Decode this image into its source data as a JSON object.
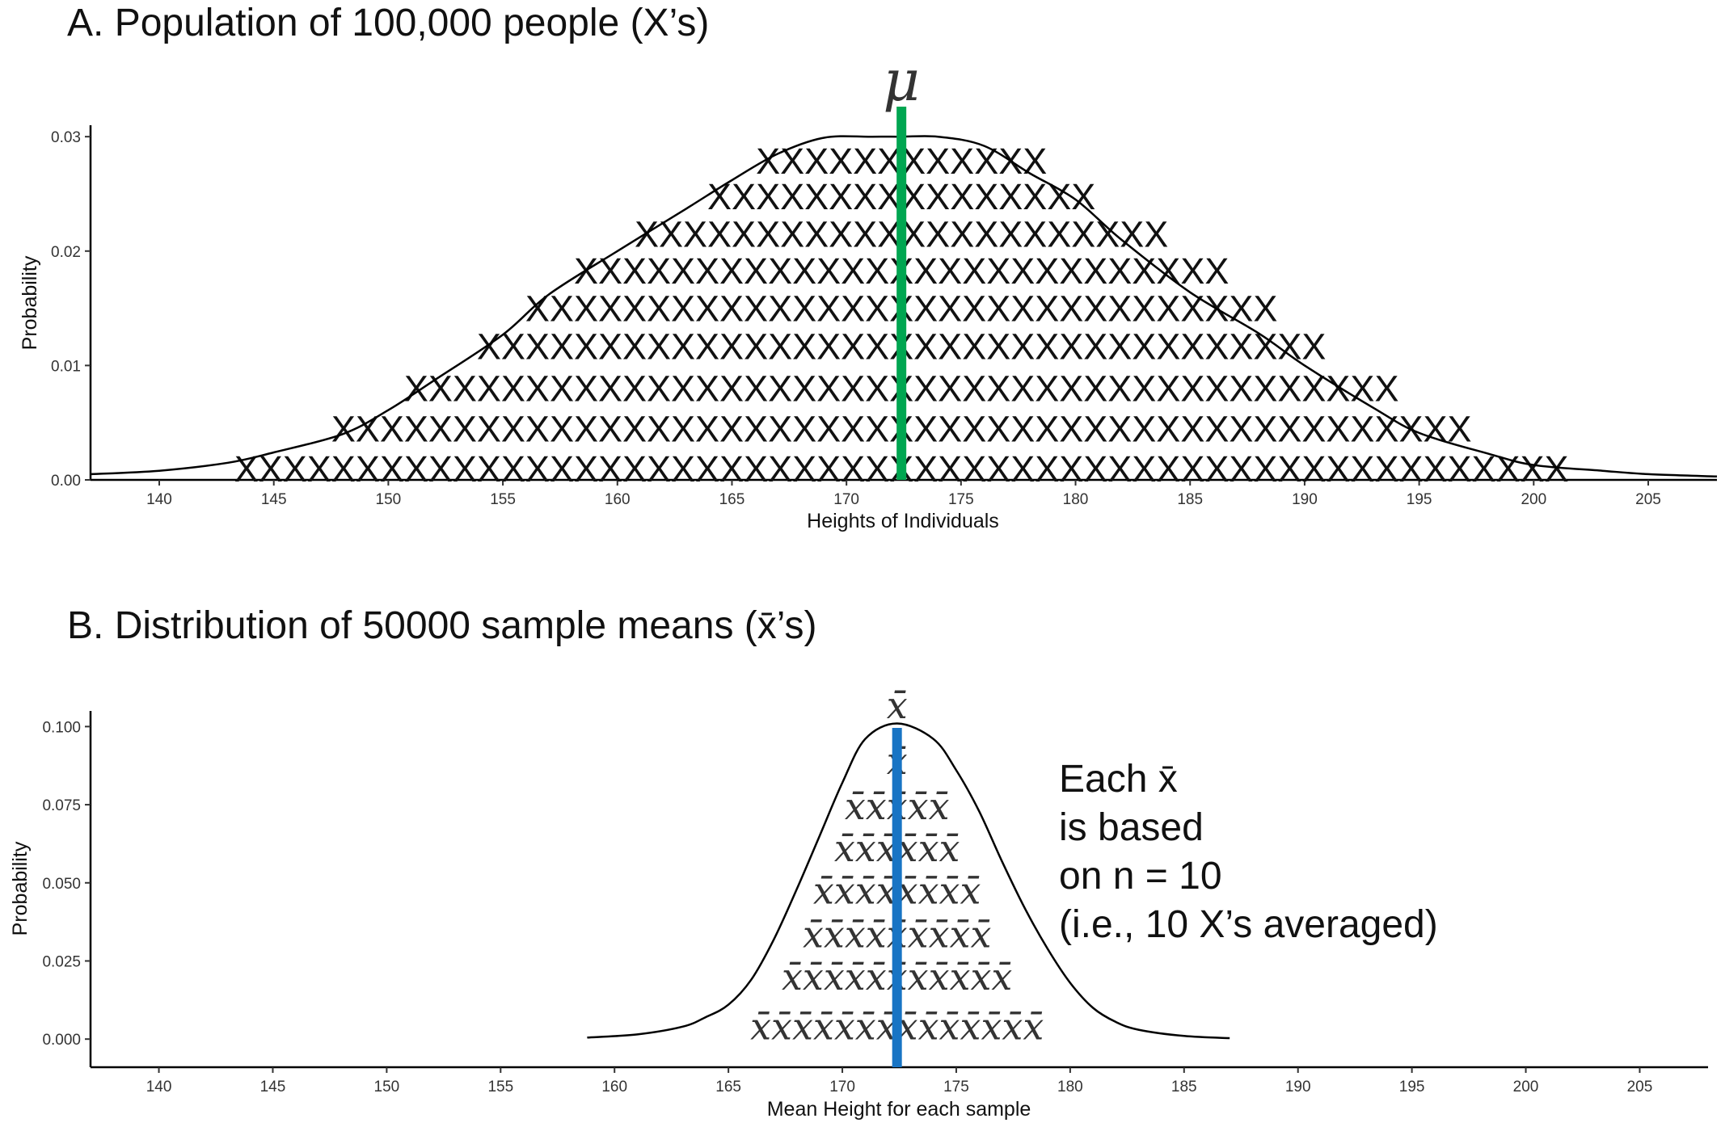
{
  "chart_data": [
    {
      "type": "area",
      "title": "A. Population of 100,000 people (X’s)",
      "xlabel": "Heights of Individuals",
      "ylabel": "Probability",
      "xlim": [
        137,
        208
      ],
      "ylim": [
        0,
        0.031
      ],
      "xticks": [
        "140",
        "145",
        "150",
        "155",
        "160",
        "165",
        "170",
        "175",
        "180",
        "185",
        "190",
        "195",
        "200",
        "205"
      ],
      "yticks": [
        "0.00",
        "0.01",
        "0.02",
        "0.03"
      ],
      "reference_line": {
        "label": "μ",
        "x": 172.4,
        "color": "#00a651"
      },
      "density": {
        "x": [
          137,
          140,
          143,
          145,
          148,
          150,
          152,
          155,
          157,
          160,
          163,
          165,
          167,
          169,
          171,
          172.4,
          174,
          176,
          178,
          180,
          182,
          185,
          188,
          190,
          193,
          195,
          198,
          200,
          203,
          205,
          208
        ],
        "y": [
          0.0005,
          0.0008,
          0.0015,
          0.0024,
          0.004,
          0.0061,
          0.0087,
          0.0127,
          0.0162,
          0.02,
          0.0237,
          0.0262,
          0.0285,
          0.0299,
          0.03,
          0.03,
          0.03,
          0.0292,
          0.0268,
          0.0245,
          0.021,
          0.0164,
          0.0128,
          0.01,
          0.0063,
          0.0041,
          0.0023,
          0.0013,
          0.0008,
          0.0005,
          0.0003
        ]
      },
      "marker_rows": [
        {
          "y": 0.001,
          "text": "XXXXXXXXXXXXXXXXXXXXXXXXXXXXXXXXXXXXXXXXXXXXXXXXXXXXXXX"
        },
        {
          "y": 0.0045,
          "text": "XXXXXXXXXXXXXXXXXXXXXXXXXXXXXXXXXXXXXXXXXXXXXXX"
        },
        {
          "y": 0.008,
          "text": "XXXXXXXXXXXXXXXXXXXXXXXXXXXXXXXXXXXXXXXXX"
        },
        {
          "y": 0.0117,
          "text": "XXXXXXXXXXXXXXXXXXXXXXXXXXXXXXXXXXX"
        },
        {
          "y": 0.015,
          "text": "XXXXXXXXXXXXXXXXXXXXXXXXXXXXXXX"
        },
        {
          "y": 0.0183,
          "text": "XXXXXXXXXXXXXXXXXXXXXXXXXXX"
        },
        {
          "y": 0.0215,
          "text": "XXXXXXXXXXXXXXXXXXXXXX"
        },
        {
          "y": 0.0248,
          "text": "XXXXXXXXXXXXXXXX"
        },
        {
          "y": 0.0279,
          "text": "XXXXXXXXXXXX"
        }
      ]
    },
    {
      "type": "area",
      "title": "B. Distribution of 50000 sample means (x̄’s)",
      "xlabel": "Mean Height for each sample",
      "ylabel": "Probability",
      "xlim": [
        137,
        208
      ],
      "ylim": [
        -0.009,
        0.105
      ],
      "xticks": [
        "140",
        "145",
        "150",
        "155",
        "160",
        "165",
        "170",
        "175",
        "180",
        "185",
        "190",
        "195",
        "200",
        "205"
      ],
      "yticks": [
        "0.000",
        "0.025",
        "0.050",
        "0.075",
        "0.100"
      ],
      "reference_line": {
        "label": "x̄̄",
        "x": 172.4,
        "color": "#1874c4"
      },
      "density": {
        "x": [
          158.8,
          161,
          163,
          164,
          165,
          166,
          167,
          168,
          169,
          170,
          171,
          172.4,
          174,
          175,
          176,
          177,
          178,
          179,
          180,
          181,
          182,
          183,
          185,
          187
        ],
        "y": [
          0.0005,
          0.0015,
          0.004,
          0.007,
          0.011,
          0.019,
          0.032,
          0.048,
          0.065,
          0.082,
          0.096,
          0.101,
          0.096,
          0.086,
          0.073,
          0.057,
          0.042,
          0.029,
          0.018,
          0.01,
          0.0055,
          0.003,
          0.001,
          0.0003
        ]
      },
      "marker_rows": [
        {
          "y": 0.004,
          "text": "x̄x̄x̄x̄x̄x̄x̄x̄x̄x̄x̄x̄x̄x̄"
        },
        {
          "y": 0.02,
          "text": "x̄x̄x̄x̄x̄x̄x̄x̄x̄x̄x̄"
        },
        {
          "y": 0.0335,
          "text": "x̄x̄x̄x̄x̄x̄x̄x̄x̄"
        },
        {
          "y": 0.0475,
          "text": "x̄x̄x̄x̄x̄x̄x̄x̄"
        },
        {
          "y": 0.061,
          "text": "x̄x̄x̄x̄x̄x̄"
        },
        {
          "y": 0.0745,
          "text": "x̄x̄x̄x̄x̄"
        },
        {
          "y": 0.089,
          "text": "x̄"
        }
      ],
      "annotation": [
        "Each x̄",
        "is based",
        "on n = 10",
        "(i.e., 10 X’s averaged)"
      ]
    }
  ]
}
